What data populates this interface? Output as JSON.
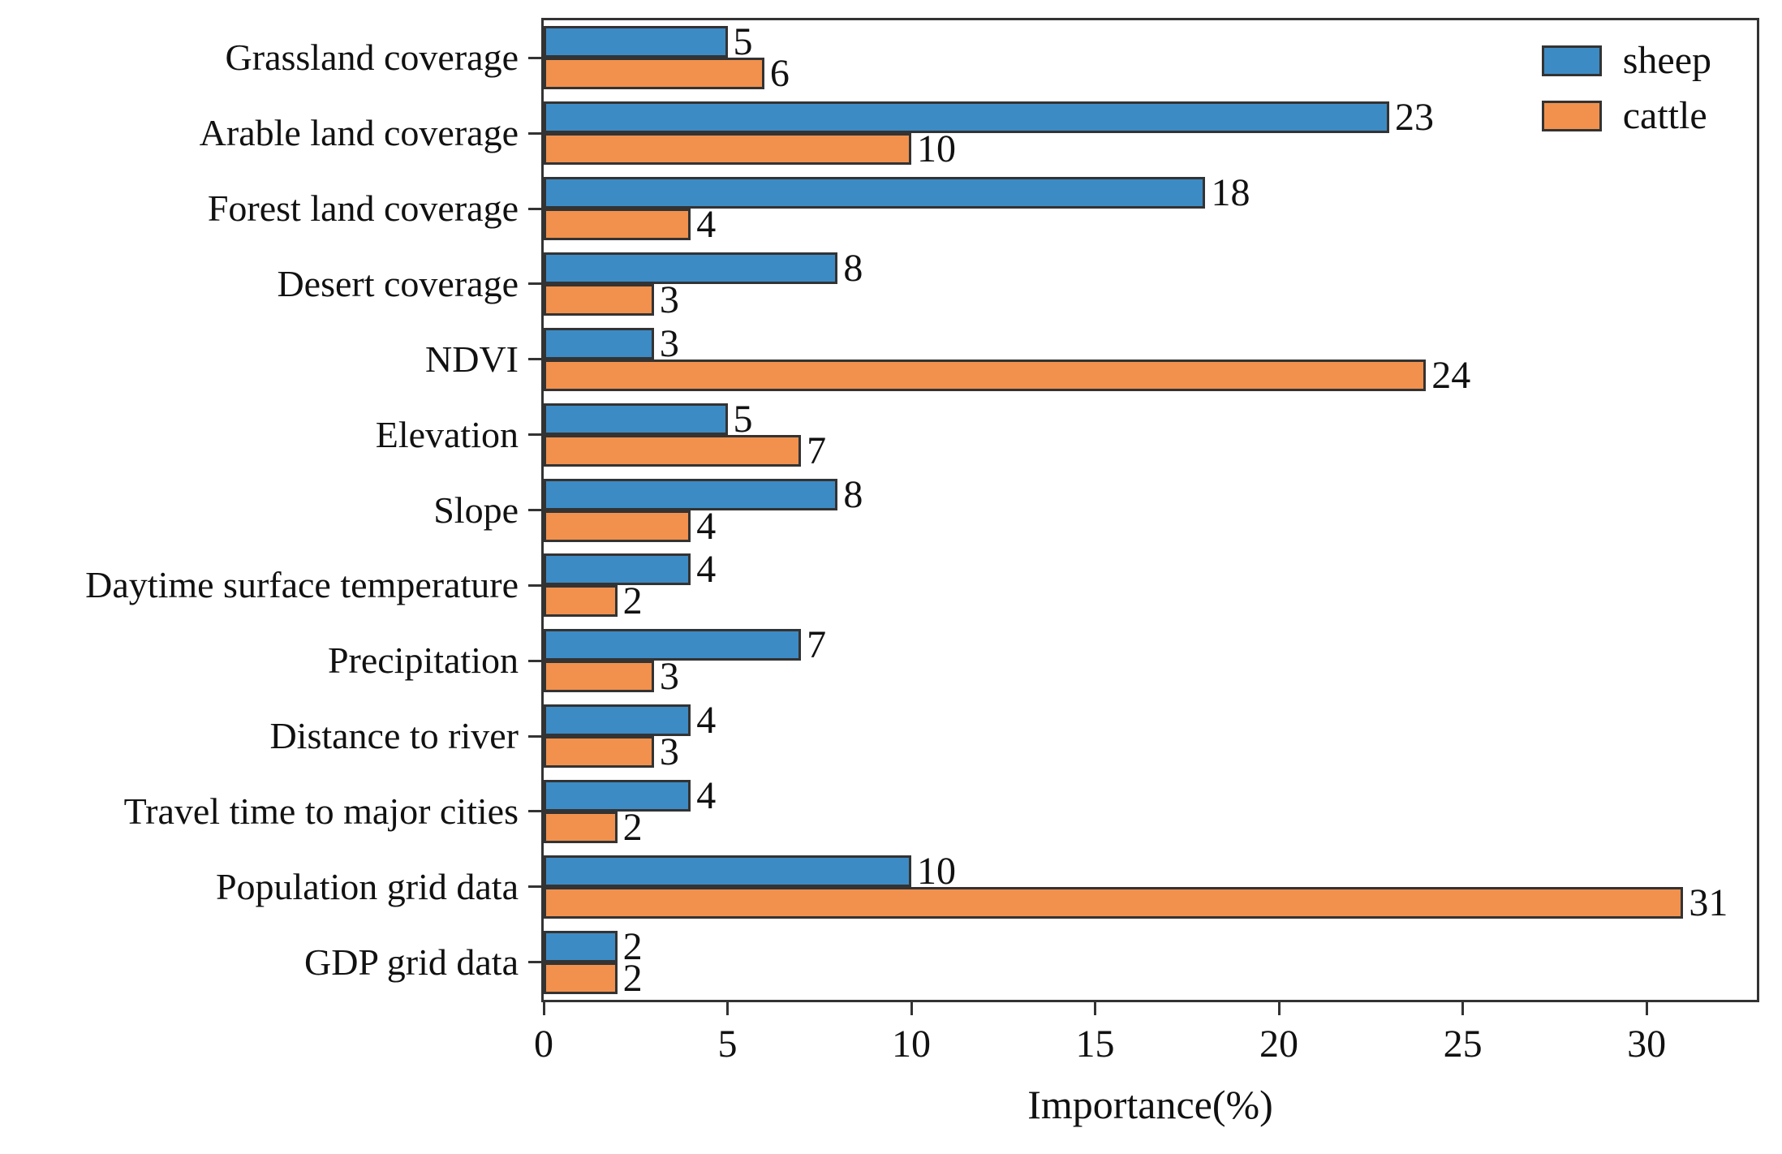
{
  "chart_data": {
    "type": "bar",
    "orientation": "horizontal",
    "title": "",
    "xlabel": "Importance(%)",
    "ylabel": "",
    "xlim": [
      0,
      33
    ],
    "xticks": [
      0,
      5,
      10,
      15,
      20,
      25,
      30
    ],
    "grid": false,
    "legend_position": "upper right",
    "bar_edge_color": "#333333",
    "categories": [
      "Grassland coverage",
      "Arable land coverage",
      "Forest land coverage",
      "Desert coverage",
      "NDVI",
      "Elevation",
      "Slope",
      "Daytime surface temperature",
      "Precipitation",
      "Distance to river",
      "Travel time to major cities",
      "Population grid data",
      "GDP grid data"
    ],
    "series": [
      {
        "name": "sheep",
        "color": "#3d8bc4",
        "values": [
          5,
          23,
          18,
          8,
          3,
          5,
          8,
          4,
          7,
          4,
          4,
          10,
          2
        ]
      },
      {
        "name": "cattle",
        "color": "#f1914d",
        "values": [
          6,
          10,
          4,
          3,
          24,
          7,
          4,
          2,
          3,
          3,
          2,
          31,
          2
        ]
      }
    ],
    "value_labels": true
  }
}
